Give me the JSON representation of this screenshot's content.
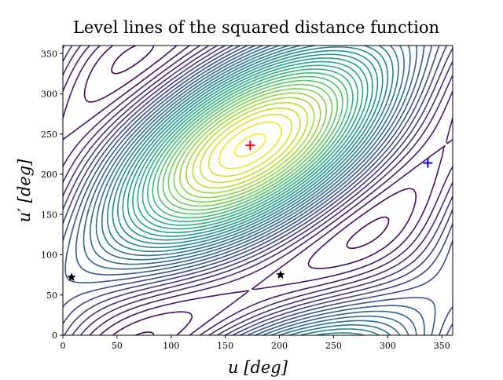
{
  "chart_data": {
    "type": "contour",
    "title": "Level lines of the squared distance function",
    "xlabel": "u [deg]",
    "ylabel": "u′ [deg]",
    "xlim": [
      0,
      360
    ],
    "ylim": [
      0,
      360
    ],
    "xticks": [
      0,
      50,
      100,
      150,
      200,
      250,
      300,
      350
    ],
    "yticks": [
      0,
      50,
      100,
      150,
      200,
      250,
      300,
      350
    ],
    "levels": [
      -1.8,
      -1.65,
      -1.5,
      -1.35,
      -1.2,
      -1.05,
      -0.9,
      -0.75,
      -0.6,
      -0.45,
      -0.3,
      -0.15,
      0,
      0.15,
      0.3,
      0.45,
      0.6,
      0.75,
      0.9,
      1.05,
      1.2,
      1.35,
      1.5,
      1.65,
      1.8,
      1.95,
      2.1,
      2.25,
      2.4,
      2.55,
      2.7,
      2.85,
      3,
      3.15,
      3.3,
      3.45
    ],
    "points": [
      {
        "x": 173,
        "y": 236,
        "color": "#ff0000",
        "marker": "plus"
      },
      {
        "x": 337,
        "y": 214,
        "color": "#0000ff",
        "marker": "plus"
      },
      {
        "x": 8,
        "y": 72,
        "color": "#000000",
        "marker": "star"
      },
      {
        "x": 201,
        "y": 75,
        "color": "#000000",
        "marker": "star"
      }
    ]
  }
}
